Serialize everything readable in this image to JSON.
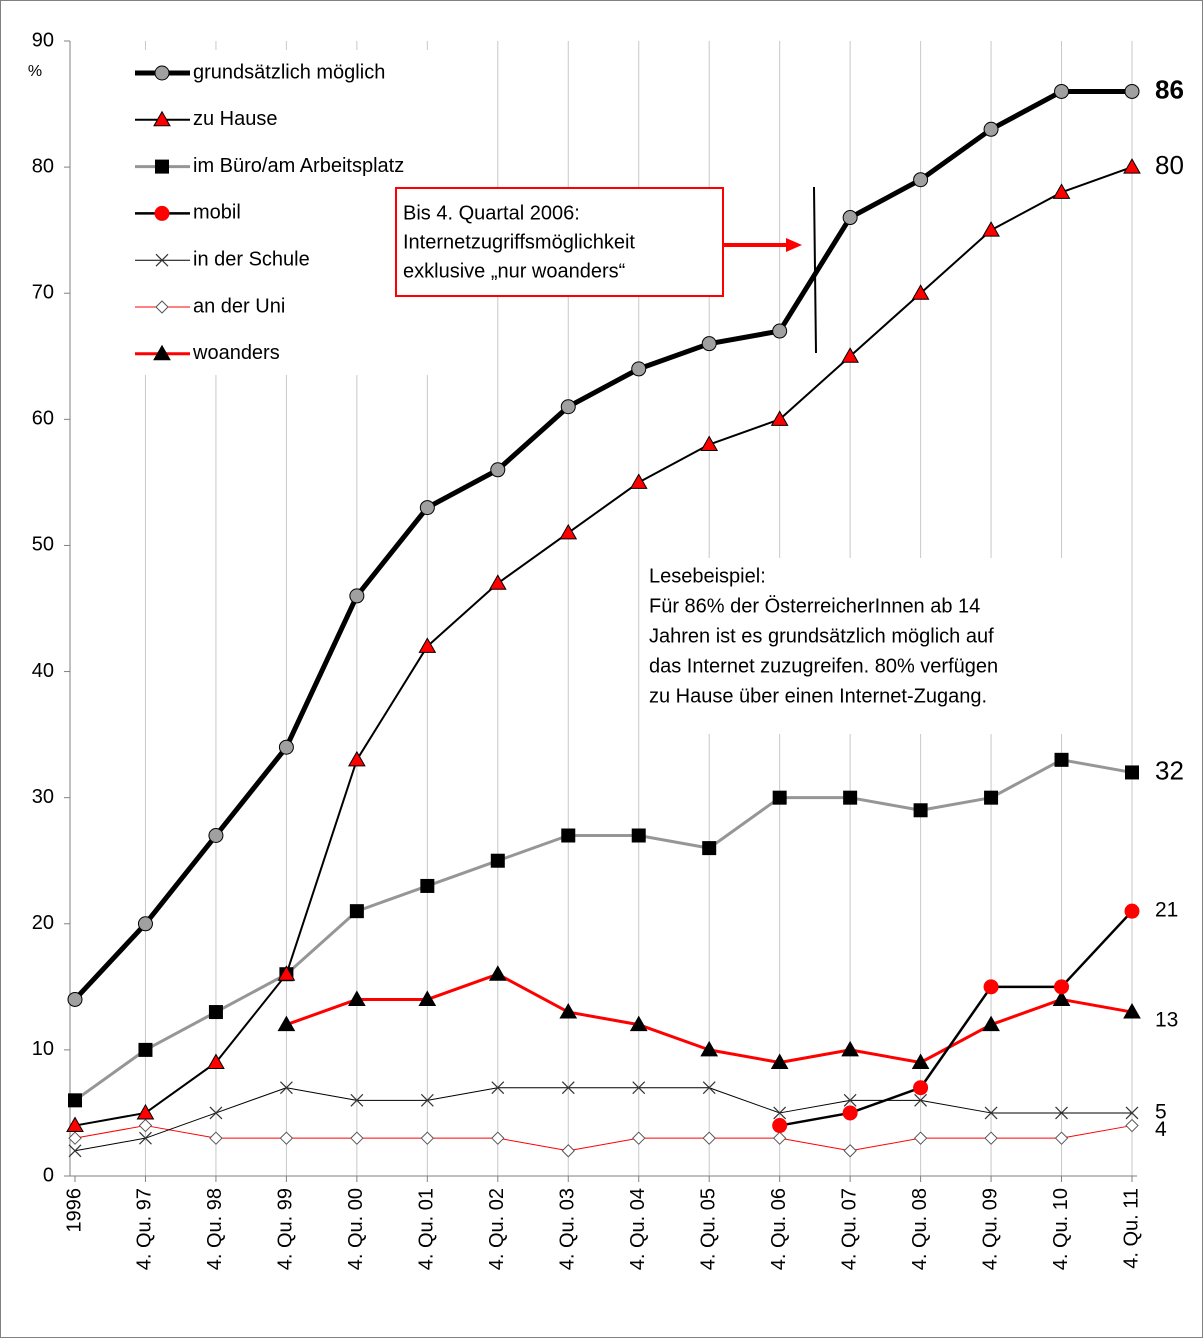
{
  "chart_data": {
    "type": "line",
    "y_unit": "%",
    "categories": [
      "1996",
      "4. Qu. 97",
      "4. Qu. 98",
      "4. Qu. 99",
      "4. Qu. 00",
      "4. Qu. 01",
      "4. Qu. 02",
      "4. Qu. 03",
      "4. Qu. 04",
      "4. Qu. 05",
      "4. Qu. 06",
      "4. Qu. 07",
      "4. Qu. 08",
      "4. Qu. 09",
      "4. Qu. 10",
      "4. Qu. 11"
    ],
    "series": [
      {
        "name": "grundsätzlich möglich",
        "color": "#000000",
        "marker_color": "#a0a0a0",
        "marker": "circle",
        "line_width": 5,
        "values": [
          14,
          20,
          27,
          34,
          46,
          53,
          56,
          61,
          64,
          66,
          67,
          76,
          79,
          83,
          86,
          86
        ]
      },
      {
        "name": "zu Hause",
        "color": "#000000",
        "marker_color": "#ff0000",
        "marker": "triangle",
        "line_width": 2,
        "values": [
          4,
          5,
          9,
          16,
          33,
          42,
          47,
          51,
          55,
          58,
          60,
          65,
          70,
          75,
          78,
          80
        ]
      },
      {
        "name": "im Büro/am Arbeitsplatz",
        "color": "#969696",
        "marker_color": "#000000",
        "marker": "square",
        "line_width": 3,
        "values": [
          6,
          10,
          13,
          16,
          21,
          23,
          25,
          27,
          27,
          26,
          30,
          30,
          29,
          30,
          33,
          32
        ]
      },
      {
        "name": "mobil",
        "color": "#000000",
        "marker_color": "#ff0000",
        "marker": "circle",
        "line_width": 2.5,
        "values": [
          null,
          null,
          null,
          null,
          null,
          null,
          null,
          null,
          null,
          null,
          4,
          5,
          7,
          15,
          15,
          21
        ]
      },
      {
        "name": "in der Schule",
        "color": "#000000",
        "marker_color": "#000000",
        "marker": "cross",
        "line_width": 1,
        "values": [
          2,
          3,
          5,
          7,
          6,
          6,
          7,
          7,
          7,
          7,
          5,
          6,
          6,
          5,
          5,
          5
        ]
      },
      {
        "name": "an der Uni",
        "color": "#ff0000",
        "marker_color": "#ffffff",
        "marker": "diamond",
        "line_width": 1,
        "values": [
          3,
          4,
          3,
          3,
          3,
          3,
          3,
          2,
          3,
          3,
          3,
          2,
          3,
          3,
          3,
          4
        ]
      },
      {
        "name": "woanders",
        "color": "#ff0000",
        "marker_color": "#000000",
        "marker": "triangle",
        "line_width": 3,
        "values": [
          null,
          null,
          null,
          12,
          14,
          14,
          16,
          13,
          12,
          10,
          9,
          10,
          9,
          12,
          14,
          13
        ]
      }
    ],
    "ylim": [
      0,
      90
    ],
    "yticks": [
      0,
      10,
      20,
      30,
      40,
      50,
      60,
      70,
      80,
      90
    ],
    "grid": "x",
    "annotations": [
      {
        "lines": [
          "Bis 4. Quartal 2006:",
          "Internetzugriffsmöglichkeit",
          "exklusive „nur woanders“"
        ]
      },
      {
        "lines": [
          "Lesebeispiel:",
          "Für 86% der ÖsterreicherInnen  ab 14",
          "Jahren ist es grundsätzlich möglich auf",
          "das Internet zuzugreifen. 80% verfügen",
          "zu Hause über einen Internet-Zugang."
        ]
      }
    ]
  }
}
